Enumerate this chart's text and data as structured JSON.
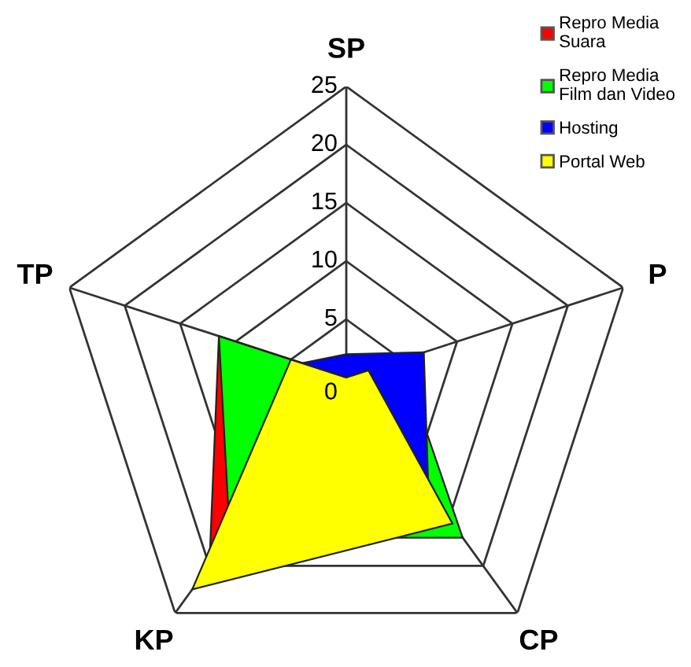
{
  "chart_data": {
    "type": "radar",
    "categories": [
      "SP",
      "P",
      "CP",
      "KP",
      "TP"
    ],
    "series": [
      {
        "name": "Repro Media\nSuara",
        "color": "#ff0000",
        "values": [
          0,
          5,
          14,
          20,
          11.5
        ]
      },
      {
        "name": "Repro Media\nFilm dan Video",
        "color": "#00ff00",
        "values": [
          0,
          5,
          17,
          17,
          11.5
        ]
      },
      {
        "name": "Hosting",
        "color": "#0000ff",
        "values": [
          2,
          7,
          12,
          10,
          4
        ]
      },
      {
        "name": "Portal Web",
        "color": "#ffff00",
        "values": [
          0,
          2,
          15.5,
          22.5,
          5
        ]
      }
    ],
    "ylim": [
      0,
      25
    ],
    "yticks": [
      0,
      5,
      10,
      15,
      20,
      25
    ],
    "grid": true,
    "legend": "top right",
    "marker": "none"
  }
}
